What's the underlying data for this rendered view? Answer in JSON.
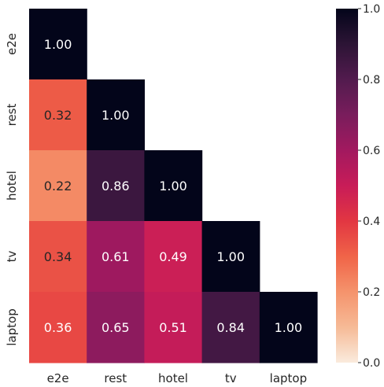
{
  "chart_data": {
    "type": "heatmap",
    "x_labels": [
      "e2e",
      "rest",
      "hotel",
      "tv",
      "laptop"
    ],
    "y_labels": [
      "e2e",
      "rest",
      "hotel",
      "tv",
      "laptop"
    ],
    "values": [
      [
        1.0,
        null,
        null,
        null,
        null
      ],
      [
        0.32,
        1.0,
        null,
        null,
        null
      ],
      [
        0.22,
        0.86,
        1.0,
        null,
        null
      ],
      [
        0.34,
        0.61,
        0.49,
        1.0,
        null
      ],
      [
        0.36,
        0.65,
        0.51,
        0.84,
        1.0
      ]
    ],
    "annotations": [
      [
        "1.00",
        "",
        "",
        "",
        ""
      ],
      [
        "0.32",
        "1.00",
        "",
        "",
        ""
      ],
      [
        "0.22",
        "0.86",
        "1.00",
        "",
        ""
      ],
      [
        "0.34",
        "0.61",
        "0.49",
        "1.00",
        ""
      ],
      [
        "0.36",
        "0.65",
        "0.51",
        "0.84",
        "1.00"
      ]
    ],
    "mask": "upper-triangle",
    "colormap": "rocket_r",
    "vmin": 0.0,
    "vmax": 1.0,
    "colorbar_ticks": [
      0.0,
      0.2,
      0.4,
      0.6,
      0.8,
      1.0
    ],
    "colorbar_tick_labels": [
      "0.0",
      "0.2",
      "0.4",
      "0.6",
      "0.8",
      "1.0"
    ],
    "colorbar_position": "right",
    "title": "",
    "xlabel": "",
    "ylabel": "",
    "grid": false
  }
}
